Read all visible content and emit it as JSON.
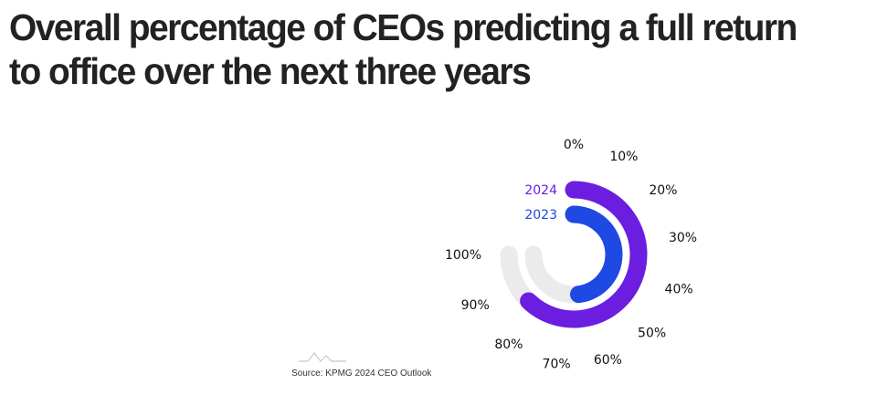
{
  "page": {
    "title": "Overall percentage of CEOs predicting a full return to office over the next three years",
    "source": "Source: KPMG 2024 CEO Outlook"
  },
  "chart_data": {
    "type": "radial-bar",
    "title": "Overall percentage of CEOs predicting a full return to office over the next three years",
    "scale_max": 100,
    "tick_labels": [
      "0%",
      "10%",
      "20%",
      "30%",
      "40%",
      "50%",
      "60%",
      "70%",
      "80%",
      "90%",
      "100%"
    ],
    "series": [
      {
        "name": "2024",
        "value": 83,
        "color": "#6b1de0"
      },
      {
        "name": "2023",
        "value": 64,
        "color": "#1e49e2"
      }
    ],
    "track_color": "#ebebeb"
  }
}
